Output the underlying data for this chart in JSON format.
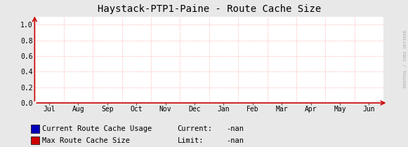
{
  "title": "Haystack-PTP1-Paine - Route Cache Size",
  "title_fontsize": 10,
  "outer_bg_color": "#e8e8e8",
  "plot_bg_color": "#ffffff",
  "grid_color": "#ffaaaa",
  "ylim": [
    0.0,
    1.1
  ],
  "yticks": [
    0.0,
    0.2,
    0.4,
    0.6,
    0.8,
    1.0
  ],
  "xlabel_months": [
    "Jul",
    "Aug",
    "Sep",
    "Oct",
    "Nov",
    "Dec",
    "Jan",
    "Feb",
    "Mar",
    "Apr",
    "May",
    "Jun"
  ],
  "legend_entries": [
    {
      "label": "Current Route Cache Usage",
      "color": "#0000bb"
    },
    {
      "label": "Max Route Cache Size",
      "color": "#cc0000"
    }
  ],
  "current_label": "Current:",
  "current_value": "-nan",
  "limit_label": "Limit:",
  "limit_value": "-nan",
  "watermark": "RRDTOOL / TOBI OETIKER",
  "font_family": "monospace",
  "legend_fontsize": 7.5,
  "arrow_color": "#cc0000",
  "tick_color": "#555555"
}
